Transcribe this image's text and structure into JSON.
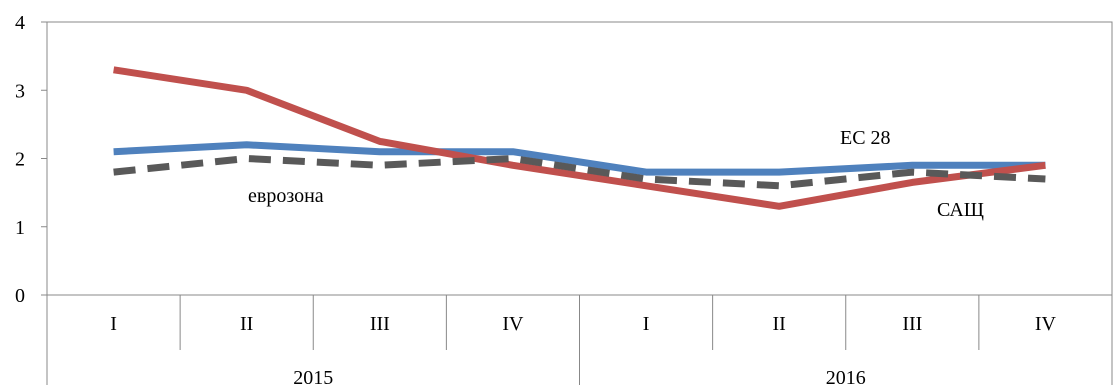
{
  "chart_data": {
    "type": "line",
    "title": "",
    "xlabel": "",
    "ylabel": "",
    "ylim": [
      0,
      4
    ],
    "y_ticks": [
      "0",
      "1",
      "2",
      "3",
      "4"
    ],
    "categories": [
      "I",
      "II",
      "III",
      "IV",
      "I",
      "II",
      "III",
      "IV"
    ],
    "groups": [
      {
        "label": "2015",
        "span": 4
      },
      {
        "label": "2016",
        "span": 4
      }
    ],
    "grid": false,
    "legend": "none",
    "series": [
      {
        "values": [
          2.1,
          2.2,
          2.1,
          2.1,
          1.8,
          1.8,
          1.9,
          1.9
        ],
        "color": "#4f81bd",
        "style": "solid"
      },
      {
        "values": [
          3.3,
          3.0,
          2.25,
          1.9,
          1.6,
          1.3,
          1.65,
          1.9
        ],
        "color": "#c0504d",
        "style": "solid"
      },
      {
        "values": [
          1.8,
          2.0,
          1.9,
          2.0,
          1.7,
          1.6,
          1.8,
          1.7
        ],
        "color": "#595959",
        "style": "dashed"
      }
    ],
    "annotations": [
      {
        "text": "ЕС 28",
        "series": 0
      },
      {
        "text": "еврозона",
        "series": 2
      },
      {
        "text": "САЩ",
        "series": 1
      }
    ]
  }
}
